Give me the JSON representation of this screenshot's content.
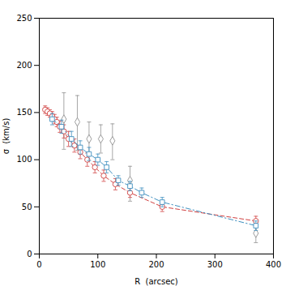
{
  "chart_data": {
    "type": "line",
    "xlabel": "R  (arcsec)",
    "ylabel": "σ  (km/s)",
    "xlim": [
      0,
      400
    ],
    "ylim": [
      0,
      250
    ],
    "xticks": [
      0,
      100,
      200,
      300,
      400
    ],
    "yticks": [
      0,
      50,
      100,
      150,
      200,
      250
    ],
    "grid": false,
    "series": [
      {
        "type": "scatter",
        "color": "#909090",
        "marker": "diamond",
        "x": [
          42,
          65,
          85,
          105,
          125,
          155,
          370
        ],
        "values": [
          143,
          140,
          122,
          122,
          120,
          78,
          22
        ],
        "yerr_lo": [
          32,
          30,
          18,
          15,
          20,
          22,
          10
        ],
        "yerr_hi": [
          28,
          28,
          18,
          15,
          18,
          15,
          10
        ]
      },
      {
        "type": "line",
        "color": "#d04040",
        "marker": "circle",
        "line_style": "dashed",
        "x": [
          10,
          14,
          18,
          22,
          26,
          30,
          35,
          42,
          50,
          60,
          70,
          82,
          95,
          110,
          130,
          155,
          210,
          370
        ],
        "values": [
          153,
          151,
          149,
          146,
          143,
          140,
          135,
          130,
          122,
          115,
          108,
          100,
          92,
          83,
          74,
          65,
          50,
          35
        ],
        "yerr": [
          4,
          4,
          4,
          5,
          5,
          5,
          6,
          7,
          8,
          7,
          7,
          7,
          6,
          6,
          6,
          5,
          5,
          5
        ]
      },
      {
        "type": "line",
        "color": "#4090c0",
        "marker": "square",
        "line_style": "dashdot",
        "x": [
          22,
          38,
          55,
          70,
          85,
          100,
          115,
          135,
          155,
          175,
          210,
          370
        ],
        "values": [
          143,
          135,
          122,
          113,
          106,
          100,
          92,
          78,
          72,
          65,
          55,
          30
        ],
        "yerr": [
          6,
          7,
          8,
          7,
          7,
          6,
          6,
          5,
          5,
          5,
          5,
          5
        ]
      }
    ]
  }
}
